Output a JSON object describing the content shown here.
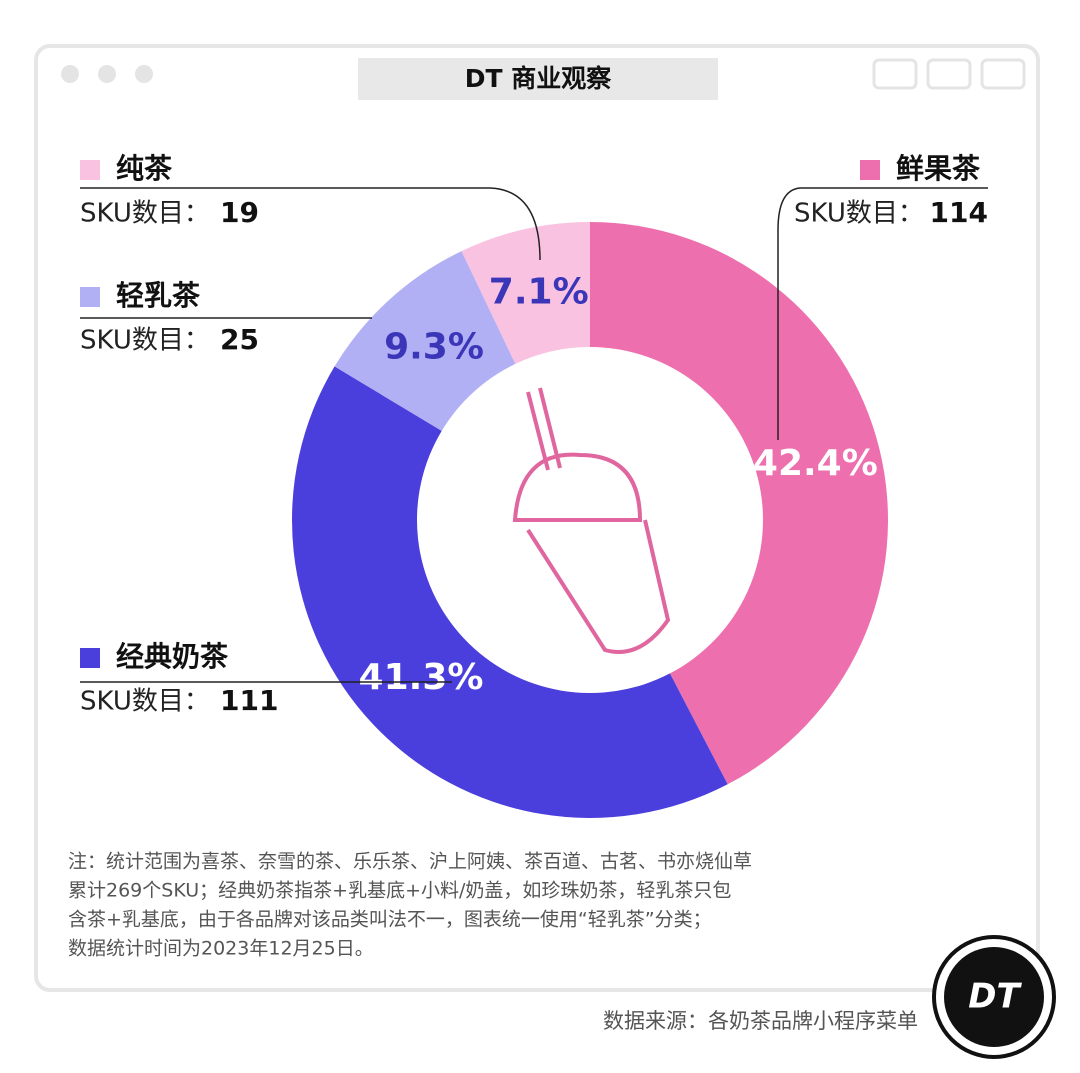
{
  "header": {
    "title": "DT 商业观察"
  },
  "chart_data": {
    "type": "donut",
    "categories": [
      "鲜果茶",
      "经典奶茶",
      "轻乳茶",
      "纯茶"
    ],
    "values": [
      42.4,
      41.3,
      9.3,
      7.1
    ],
    "value_labels": [
      "42.4%",
      "41.3%",
      "9.3%",
      "7.1%"
    ],
    "colors": [
      "#ee6fae",
      "#4a3fdc",
      "#b2b0f5",
      "#f9c2e1"
    ],
    "count_label": "SKU数目：",
    "counts": [
      114,
      111,
      25,
      19
    ]
  },
  "notes": [
    "注：统计范围为喜茶、奈雪的茶、乐乐茶、沪上阿姨、茶百道、古茗、书亦烧仙草",
    "累计269个SKU；经典奶茶指茶+乳基底+小料/奶盖，如珍珠奶茶，轻乳茶只包",
    "含茶+乳基底，由于各品牌对该品类叫法不一，图表统一使用“轻乳茶”分类；",
    "数据统计时间为2023年12月25日。"
  ],
  "source": "数据来源：各奶茶品牌小程序菜单",
  "logo": "DT"
}
